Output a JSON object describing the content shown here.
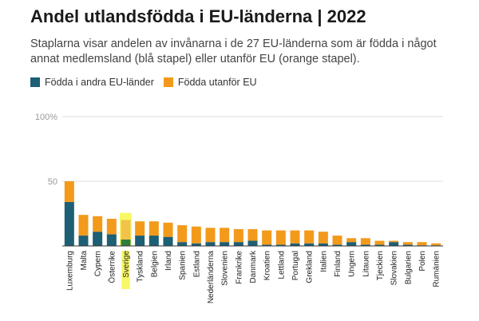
{
  "title": "Andel utlandsfödda i EU-länderna | 2022",
  "subtitle": "Staplarna visar andelen av invånarna i de 27 EU-länderna som är födda i något annat medlemsland (blå stapel) eller utanför EU (orange stapel).",
  "legend": {
    "eu_label": "Födda i andra EU-länder",
    "non_eu_label": "Födda utanför EU"
  },
  "colors": {
    "eu": "#1d5f74",
    "non_eu": "#f39a1b",
    "highlight_bg": "#f8f866",
    "highlight_eu": "#2f7d3c",
    "highlight_non_eu": "#f2c24a",
    "grid": "#dddddd"
  },
  "chart_data": {
    "type": "bar",
    "stacked": true,
    "categories": [
      "Luxemburg",
      "Malta",
      "Cypern",
      "Österrike",
      "Sverige",
      "Tyskland",
      "Belgien",
      "Irland",
      "Spanien",
      "Estland",
      "Nederländerna",
      "Slovenien",
      "Frankrike",
      "Danmark",
      "Kroatien",
      "Lettland",
      "Portugal",
      "Grekland",
      "Italien",
      "Finland",
      "Ungern",
      "Litauen",
      "Tjeckien",
      "Slovakien",
      "Bulgarien",
      "Polen",
      "Rumänien"
    ],
    "highlight": "Sverige",
    "series": [
      {
        "name": "Födda i andra EU-länder",
        "values": [
          34,
          8,
          11,
          9,
          5,
          8,
          8,
          7,
          3,
          2,
          3,
          3,
          3,
          4,
          1,
          1,
          2,
          2,
          2,
          1,
          3,
          1,
          1,
          3,
          1,
          0.5,
          0.5
        ]
      },
      {
        "name": "Födda utanför EU",
        "values": [
          16,
          16,
          12,
          12,
          15,
          11,
          11,
          11,
          13,
          13,
          11,
          11,
          10,
          9,
          11,
          11,
          10,
          10,
          9,
          7,
          3,
          5,
          3,
          1,
          2,
          2.5,
          1.5
        ]
      }
    ],
    "ylim": [
      0,
      100
    ],
    "yticks": [
      {
        "value": 50,
        "label": "50"
      },
      {
        "value": 100,
        "label": "100%"
      }
    ],
    "grid": true
  }
}
